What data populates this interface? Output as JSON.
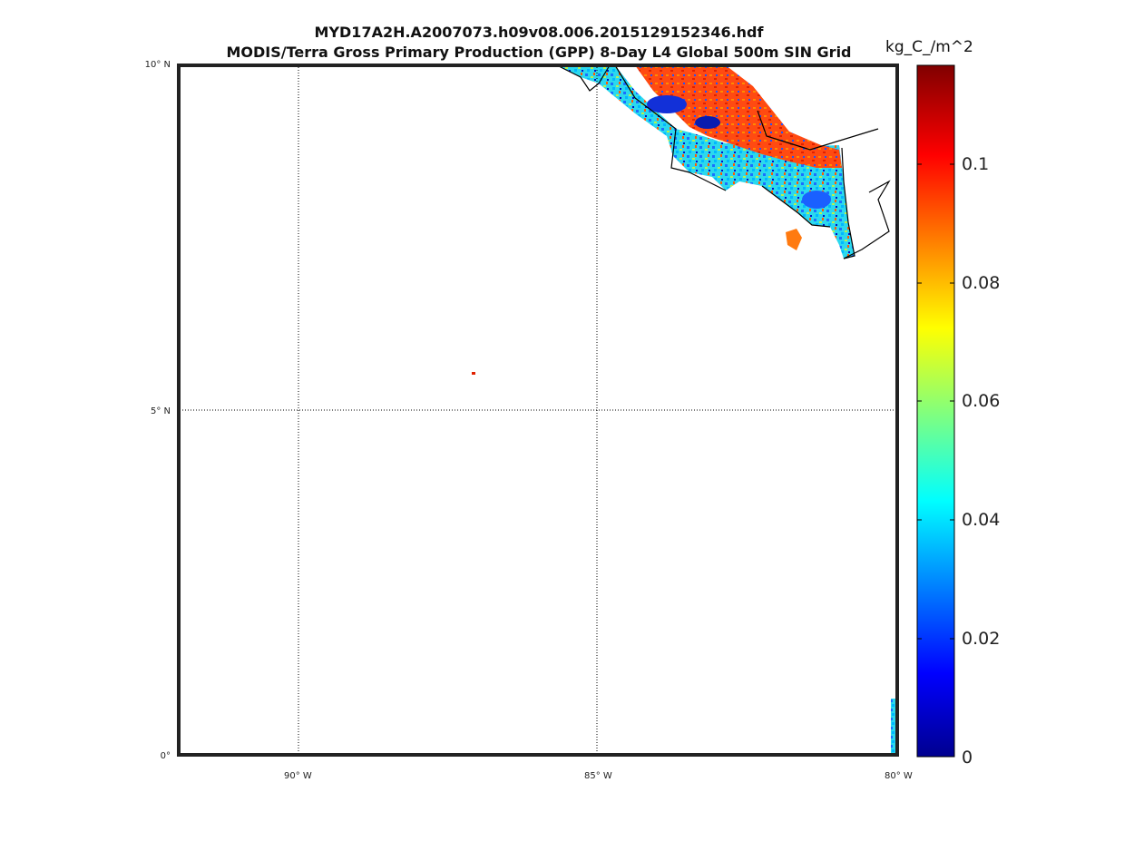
{
  "title": {
    "line1": "MYD17A2H.A2007073.h09v08.006.2015129152346.hdf",
    "line2": "MODIS/Terra Gross Primary Production (GPP) 8-Day L4 Global 500m SIN Grid"
  },
  "colorbar": {
    "unit_label": "kg_C_/m^2",
    "ticks": [
      "0.1",
      "0.08",
      "0.06",
      "0.04",
      "0.02",
      "0"
    ],
    "colormap": [
      "#00008f",
      "#0000ff",
      "#00ffff",
      "#ffff00",
      "#ff0000",
      "#800000"
    ]
  },
  "map": {
    "lat_labels": [
      "10° N",
      "5° N",
      "0°"
    ],
    "lon_labels": [
      "90° W",
      "85° W",
      "80° W"
    ],
    "extent": {
      "lon_min": -92,
      "lon_max": -80,
      "lat_min": 0,
      "lat_max": 10
    }
  }
}
